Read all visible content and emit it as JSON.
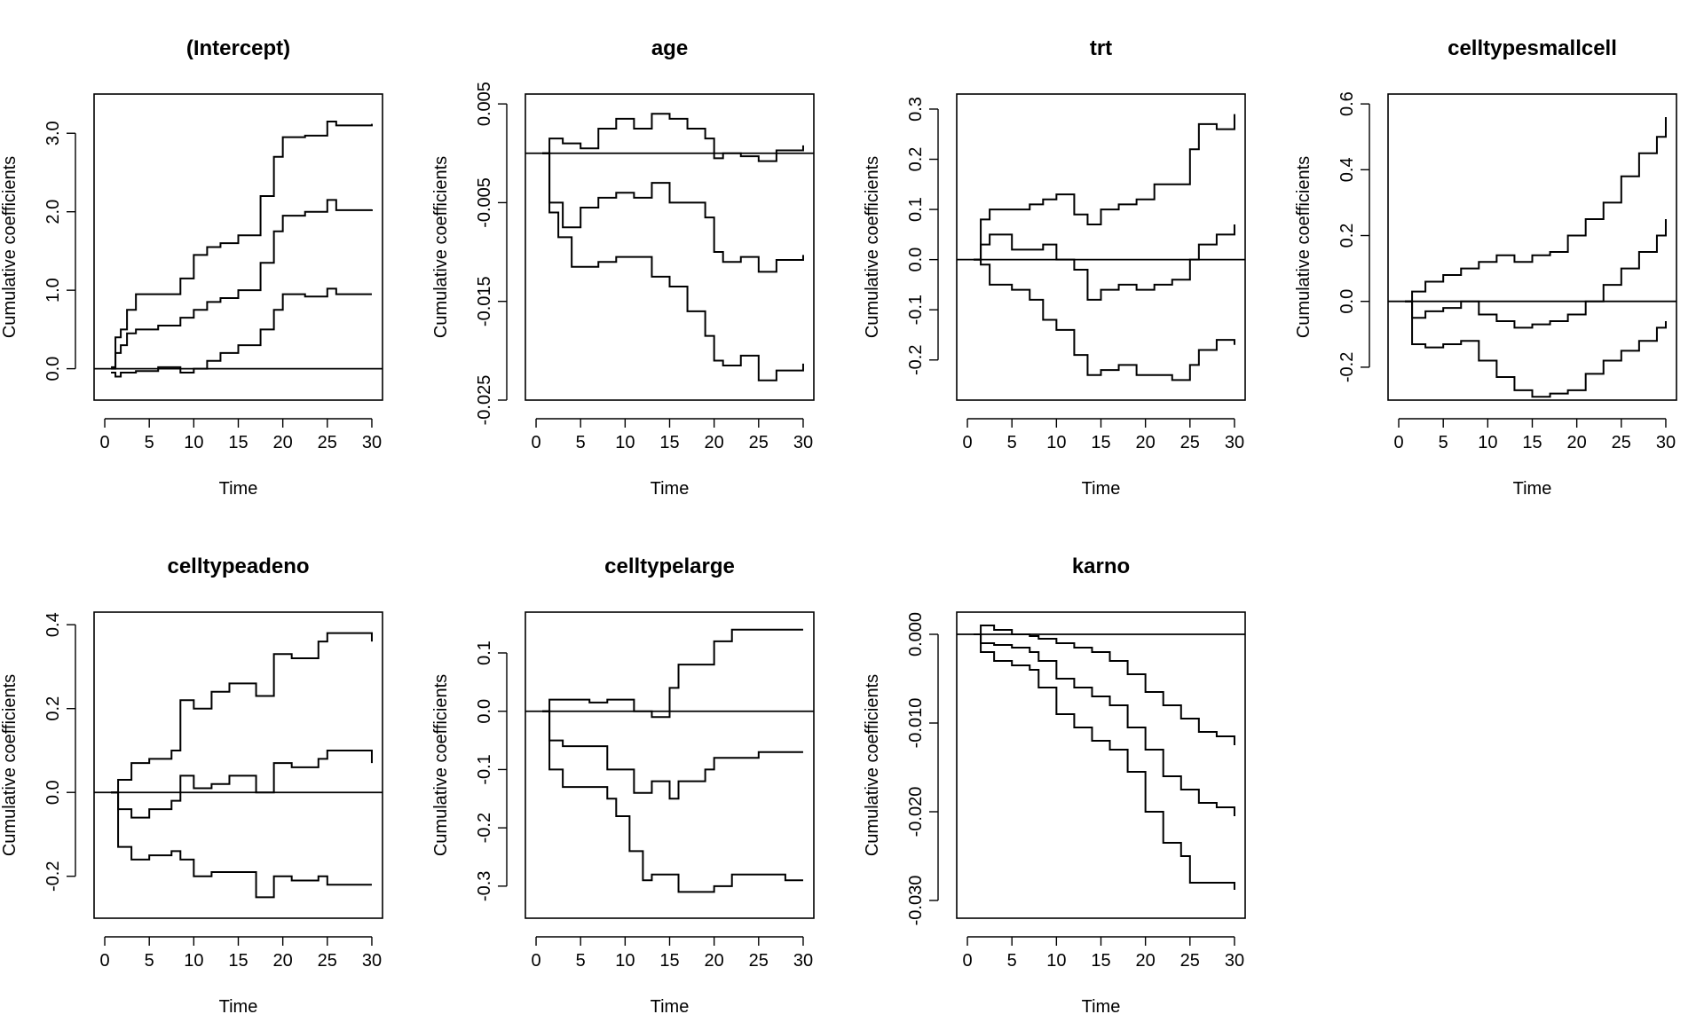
{
  "chart_data": [
    {
      "type": "line",
      "title": "(Intercept)",
      "xlabel": "Time",
      "ylabel": "Cumulative coefficients",
      "xlim": [
        -1.2,
        31.2
      ],
      "ylim": [
        -0.4,
        3.5
      ],
      "xticks": [
        0,
        5,
        10,
        15,
        20,
        25,
        30
      ],
      "xtick_labels": [
        "0",
        "5",
        "10",
        "15",
        "20",
        "25",
        "30"
      ],
      "yticks": [
        0,
        1,
        2,
        3
      ],
      "ytick_labels": [
        "0.0",
        "1.0",
        "2.0",
        "3.0"
      ],
      "hline": 0,
      "series": [
        {
          "x": [
            0.7,
            1.2,
            1.8,
            2.5,
            3.5,
            6,
            8.5,
            10,
            11.5,
            13,
            15,
            17.5,
            19,
            20,
            22.5,
            25,
            26,
            30
          ],
          "y": [
            0.02,
            0.4,
            0.5,
            0.75,
            0.95,
            0.95,
            1.15,
            1.45,
            1.55,
            1.6,
            1.7,
            2.2,
            2.7,
            2.95,
            2.97,
            3.15,
            3.1,
            3.12
          ]
        },
        {
          "x": [
            0.7,
            1.2,
            1.8,
            2.5,
            3.5,
            6,
            8.5,
            10,
            11.5,
            13,
            15,
            17.5,
            19,
            20,
            22.5,
            25,
            26,
            30
          ],
          "y": [
            0.0,
            0.2,
            0.3,
            0.45,
            0.5,
            0.55,
            0.65,
            0.75,
            0.85,
            0.9,
            1.0,
            1.35,
            1.75,
            1.95,
            2.0,
            2.15,
            2.02,
            2.03
          ]
        },
        {
          "x": [
            0.7,
            1.2,
            1.8,
            3.5,
            6,
            8.5,
            10,
            11.5,
            13,
            15,
            17.5,
            19,
            20,
            22.5,
            25,
            26,
            30
          ],
          "y": [
            -0.05,
            -0.1,
            -0.05,
            -0.03,
            0.02,
            -0.05,
            0.0,
            0.1,
            0.2,
            0.3,
            0.5,
            0.75,
            0.95,
            0.92,
            1.02,
            0.95,
            0.95
          ]
        }
      ]
    },
    {
      "type": "line",
      "title": "age",
      "xlabel": "Time",
      "ylabel": "Cumulative coefficients",
      "xlim": [
        -1.2,
        31.2
      ],
      "ylim": [
        -0.025,
        0.006
      ],
      "xticks": [
        0,
        5,
        10,
        15,
        20,
        25,
        30
      ],
      "xtick_labels": [
        "0",
        "5",
        "10",
        "15",
        "20",
        "25",
        "30"
      ],
      "yticks": [
        -0.025,
        -0.015,
        -0.005,
        0.005
      ],
      "ytick_labels": [
        "-0.025",
        "-0.015",
        "-0.005",
        "0.005"
      ],
      "hline": 0,
      "series": [
        {
          "x": [
            0.7,
            1.5,
            3,
            5,
            7,
            9,
            11,
            13,
            15,
            17,
            19,
            20,
            21,
            23,
            25,
            27,
            30
          ],
          "y": [
            0.0,
            0.0015,
            0.001,
            0.0005,
            0.0025,
            0.0035,
            0.0025,
            0.004,
            0.0035,
            0.0025,
            0.0015,
            -0.0005,
            0.0,
            -0.0003,
            -0.0008,
            0.0003,
            0.0008
          ]
        },
        {
          "x": [
            0.7,
            1.5,
            3,
            5,
            7,
            9,
            11,
            13,
            15,
            17,
            19,
            20,
            21,
            23,
            25,
            27,
            30
          ],
          "y": [
            0.0,
            -0.005,
            -0.0075,
            -0.0055,
            -0.0045,
            -0.004,
            -0.0045,
            -0.003,
            -0.005,
            -0.005,
            -0.0065,
            -0.01,
            -0.011,
            -0.0105,
            -0.012,
            -0.0108,
            -0.0103
          ]
        },
        {
          "x": [
            0.7,
            1.5,
            2.5,
            4,
            7,
            9,
            11,
            13,
            15,
            17,
            19,
            20,
            21,
            23,
            25,
            27,
            30
          ],
          "y": [
            0.0,
            -0.006,
            -0.0085,
            -0.0115,
            -0.011,
            -0.0105,
            -0.0105,
            -0.0125,
            -0.0135,
            -0.016,
            -0.0185,
            -0.021,
            -0.0215,
            -0.0205,
            -0.023,
            -0.022,
            -0.0213
          ]
        }
      ]
    },
    {
      "type": "line",
      "title": "trt",
      "xlabel": "Time",
      "ylabel": "Cumulative coefficients",
      "xlim": [
        -1.2,
        31.2
      ],
      "ylim": [
        -0.28,
        0.33
      ],
      "xticks": [
        0,
        5,
        10,
        15,
        20,
        25,
        30
      ],
      "xtick_labels": [
        "0",
        "5",
        "10",
        "15",
        "20",
        "25",
        "30"
      ],
      "yticks": [
        -0.2,
        -0.1,
        0,
        0.1,
        0.2,
        0.3
      ],
      "ytick_labels": [
        "-0.2",
        "-0.1",
        "0.0",
        "0.1",
        "0.2",
        "0.3"
      ],
      "hline": 0,
      "series": [
        {
          "x": [
            0.7,
            1.5,
            2.5,
            5,
            7,
            8.5,
            10,
            12,
            13.5,
            15,
            17,
            19,
            21,
            23,
            25,
            26,
            28,
            30
          ],
          "y": [
            0.0,
            0.08,
            0.1,
            0.1,
            0.11,
            0.12,
            0.13,
            0.09,
            0.07,
            0.1,
            0.11,
            0.12,
            0.15,
            0.15,
            0.22,
            0.27,
            0.26,
            0.29
          ]
        },
        {
          "x": [
            0.7,
            1.5,
            2.5,
            5,
            7,
            8.5,
            10,
            12,
            13.5,
            15,
            17,
            19,
            21,
            23,
            25,
            26,
            28,
            30
          ],
          "y": [
            0.0,
            0.03,
            0.05,
            0.02,
            0.02,
            0.03,
            0.0,
            -0.02,
            -0.08,
            -0.06,
            -0.05,
            -0.06,
            -0.05,
            -0.04,
            0.0,
            0.03,
            0.05,
            0.07
          ]
        },
        {
          "x": [
            0.7,
            1.5,
            2.5,
            5,
            7,
            8.5,
            10,
            12,
            13.5,
            15,
            17,
            19,
            21,
            23,
            25,
            26,
            28,
            30
          ],
          "y": [
            0.0,
            -0.01,
            -0.05,
            -0.06,
            -0.08,
            -0.12,
            -0.14,
            -0.19,
            -0.23,
            -0.22,
            -0.21,
            -0.23,
            -0.23,
            -0.24,
            -0.21,
            -0.18,
            -0.16,
            -0.17
          ]
        }
      ]
    },
    {
      "type": "line",
      "title": "celltypesmallcell",
      "xlabel": "Time",
      "ylabel": "Cumulative coefficients",
      "xlim": [
        -1.2,
        31.2
      ],
      "ylim": [
        -0.3,
        0.63
      ],
      "xticks": [
        0,
        5,
        10,
        15,
        20,
        25,
        30
      ],
      "xtick_labels": [
        "0",
        "5",
        "10",
        "15",
        "20",
        "25",
        "30"
      ],
      "yticks": [
        -0.2,
        0,
        0.2,
        0.4,
        0.6
      ],
      "ytick_labels": [
        "-0.2",
        "0.0",
        "0.2",
        "0.4",
        "0.6"
      ],
      "hline": 0,
      "series": [
        {
          "x": [
            0.7,
            1.5,
            3,
            5,
            7,
            9,
            11,
            13,
            15,
            17,
            19,
            21,
            23,
            25,
            27,
            29,
            30
          ],
          "y": [
            0.0,
            0.03,
            0.06,
            0.08,
            0.1,
            0.12,
            0.14,
            0.12,
            0.14,
            0.15,
            0.2,
            0.25,
            0.3,
            0.38,
            0.45,
            0.5,
            0.56
          ]
        },
        {
          "x": [
            0.7,
            1.5,
            3,
            5,
            7,
            9,
            11,
            13,
            15,
            17,
            19,
            21,
            23,
            25,
            27,
            29,
            30
          ],
          "y": [
            0.0,
            -0.05,
            -0.03,
            -0.02,
            0.0,
            -0.04,
            -0.06,
            -0.08,
            -0.07,
            -0.06,
            -0.04,
            0.0,
            0.05,
            0.1,
            0.15,
            0.2,
            0.25
          ]
        },
        {
          "x": [
            0.7,
            1.5,
            3,
            5,
            7,
            9,
            11,
            13,
            15,
            17,
            19,
            21,
            23,
            25,
            27,
            29,
            30
          ],
          "y": [
            0.0,
            -0.13,
            -0.14,
            -0.13,
            -0.12,
            -0.18,
            -0.23,
            -0.27,
            -0.29,
            -0.28,
            -0.27,
            -0.22,
            -0.18,
            -0.15,
            -0.12,
            -0.08,
            -0.06
          ]
        }
      ]
    },
    {
      "type": "line",
      "title": "celltypeadeno",
      "xlabel": "Time",
      "ylabel": "Cumulative coefficients",
      "xlim": [
        -1.2,
        31.2
      ],
      "ylim": [
        -0.3,
        0.43
      ],
      "xticks": [
        0,
        5,
        10,
        15,
        20,
        25,
        30
      ],
      "xtick_labels": [
        "0",
        "5",
        "10",
        "15",
        "20",
        "25",
        "30"
      ],
      "yticks": [
        -0.2,
        0,
        0.2,
        0.4
      ],
      "ytick_labels": [
        "-0.2",
        "0.0",
        "0.2",
        "0.4"
      ],
      "hline": 0,
      "series": [
        {
          "x": [
            0.7,
            1.5,
            3,
            5,
            7.5,
            8.5,
            10,
            12,
            14,
            17,
            19,
            21,
            24,
            25,
            30
          ],
          "y": [
            0.0,
            0.03,
            0.07,
            0.08,
            0.1,
            0.22,
            0.2,
            0.24,
            0.26,
            0.23,
            0.33,
            0.32,
            0.36,
            0.38,
            0.36
          ]
        },
        {
          "x": [
            0.7,
            1.5,
            3,
            5,
            7.5,
            8.5,
            10,
            12,
            14,
            17,
            19,
            21,
            24,
            25,
            30
          ],
          "y": [
            0.0,
            -0.04,
            -0.06,
            -0.04,
            -0.02,
            0.04,
            0.01,
            0.02,
            0.04,
            0.0,
            0.07,
            0.06,
            0.08,
            0.1,
            0.07
          ]
        },
        {
          "x": [
            0.7,
            1.5,
            3,
            5,
            7.5,
            8.5,
            10,
            12,
            14,
            17,
            19,
            21,
            24,
            25,
            30
          ],
          "y": [
            0.0,
            -0.13,
            -0.16,
            -0.15,
            -0.14,
            -0.16,
            -0.2,
            -0.19,
            -0.19,
            -0.25,
            -0.2,
            -0.21,
            -0.2,
            -0.22,
            -0.22
          ]
        }
      ]
    },
    {
      "type": "line",
      "title": "celltypelarge",
      "xlabel": "Time",
      "ylabel": "Cumulative coefficients",
      "xlim": [
        -1.2,
        31.2
      ],
      "ylim": [
        -0.355,
        0.17
      ],
      "xticks": [
        0,
        5,
        10,
        15,
        20,
        25,
        30
      ],
      "xtick_labels": [
        "0",
        "5",
        "10",
        "15",
        "20",
        "25",
        "30"
      ],
      "yticks": [
        -0.3,
        -0.2,
        -0.1,
        0,
        0.1
      ],
      "ytick_labels": [
        "-0.3",
        "-0.2",
        "-0.1",
        "0.0",
        "0.1"
      ],
      "hline": 0,
      "series": [
        {
          "x": [
            0.7,
            1.5,
            3,
            6,
            8,
            11,
            13,
            15,
            16,
            19,
            20,
            22,
            25,
            28,
            30
          ],
          "y": [
            0.0,
            0.02,
            0.02,
            0.015,
            0.02,
            0.0,
            -0.01,
            0.04,
            0.08,
            0.08,
            0.12,
            0.14,
            0.14,
            0.14,
            0.14
          ]
        },
        {
          "x": [
            0.7,
            1.5,
            3,
            6,
            8,
            11,
            13,
            15,
            16,
            19,
            20,
            22,
            25,
            28,
            30
          ],
          "y": [
            0.0,
            -0.05,
            -0.06,
            -0.06,
            -0.1,
            -0.14,
            -0.12,
            -0.15,
            -0.12,
            -0.1,
            -0.08,
            -0.08,
            -0.07,
            -0.07,
            -0.07
          ]
        },
        {
          "x": [
            0.7,
            1.5,
            3,
            6,
            8,
            9,
            10.5,
            12,
            13,
            15,
            16,
            19,
            20,
            22,
            25,
            28,
            30
          ],
          "y": [
            0.0,
            -0.1,
            -0.13,
            -0.13,
            -0.15,
            -0.18,
            -0.24,
            -0.29,
            -0.28,
            -0.28,
            -0.31,
            -0.31,
            -0.3,
            -0.28,
            -0.28,
            -0.29,
            -0.29
          ]
        }
      ]
    },
    {
      "type": "line",
      "title": "karno",
      "xlabel": "Time",
      "ylabel": "Cumulative coefficients",
      "xlim": [
        -1.2,
        31.2
      ],
      "ylim": [
        -0.032,
        0.0025
      ],
      "xticks": [
        0,
        5,
        10,
        15,
        20,
        25,
        30
      ],
      "xtick_labels": [
        "0",
        "5",
        "10",
        "15",
        "20",
        "25",
        "30"
      ],
      "yticks": [
        -0.03,
        -0.02,
        -0.01,
        0
      ],
      "ytick_labels": [
        "-0.030",
        "-0.020",
        "-0.010",
        "0.000"
      ],
      "hline": 0,
      "series": [
        {
          "x": [
            0.7,
            1.5,
            3,
            5,
            7,
            8,
            10,
            12,
            14,
            16,
            18,
            20,
            22,
            24,
            26,
            28,
            30
          ],
          "y": [
            0.0,
            0.001,
            0.0005,
            0.0,
            -0.0002,
            -0.0005,
            -0.001,
            -0.0015,
            -0.002,
            -0.003,
            -0.0045,
            -0.0065,
            -0.008,
            -0.0095,
            -0.011,
            -0.0115,
            -0.0125
          ]
        },
        {
          "x": [
            0.7,
            1.5,
            3,
            5,
            7,
            8,
            10,
            12,
            14,
            16,
            18,
            20,
            22,
            24,
            26,
            28,
            30
          ],
          "y": [
            0.0,
            -0.001,
            -0.0012,
            -0.0015,
            -0.002,
            -0.003,
            -0.005,
            -0.006,
            -0.007,
            -0.008,
            -0.0105,
            -0.013,
            -0.016,
            -0.0175,
            -0.019,
            -0.0195,
            -0.0205
          ]
        },
        {
          "x": [
            0.7,
            1.5,
            3,
            5,
            7,
            8,
            10,
            12,
            14,
            16,
            18,
            20,
            22,
            24,
            25,
            28,
            30
          ],
          "y": [
            0.0,
            -0.002,
            -0.003,
            -0.0035,
            -0.004,
            -0.006,
            -0.009,
            -0.0105,
            -0.012,
            -0.013,
            -0.0155,
            -0.02,
            -0.0235,
            -0.025,
            -0.028,
            -0.028,
            -0.0288
          ]
        }
      ]
    }
  ]
}
